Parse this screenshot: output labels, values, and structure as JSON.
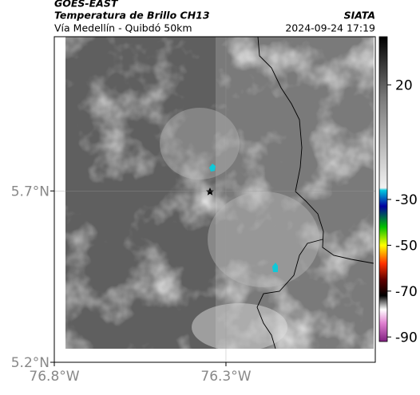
{
  "header": {
    "left_title": "GOES-EAST",
    "left_subtitle": "Temperatura de Brillo CH13",
    "left_caption": "Vía Medellín - Quibdó 50km",
    "right_title": "SIATA",
    "right_caption": "2024-09-24 17:19"
  },
  "map": {
    "lat_range": [
      5.2,
      6.15
    ],
    "lon_range": [
      -76.8,
      -75.865
    ],
    "lat_ticks": [
      {
        "value": 5.7,
        "label": "5.7°N"
      },
      {
        "value": 5.2,
        "label": "5.2°N"
      }
    ],
    "lon_ticks": [
      {
        "value": -76.8,
        "label": "76.8°W"
      },
      {
        "value": -76.3,
        "label": "76.3°W"
      }
    ]
  },
  "colorbar": {
    "range": [
      -92,
      41
    ],
    "ticks": [
      20,
      -30,
      -50,
      -70,
      -90
    ],
    "stops": [
      {
        "value": 41,
        "color": "#000000"
      },
      {
        "value": 15,
        "color": "#777777"
      },
      {
        "value": -25,
        "color": "#f2f2f2"
      },
      {
        "value": -26,
        "color": "#00c8e0"
      },
      {
        "value": -33,
        "color": "#0000a0"
      },
      {
        "value": -42,
        "color": "#00c000"
      },
      {
        "value": -50,
        "color": "#ffff00"
      },
      {
        "value": -58,
        "color": "#ff3000"
      },
      {
        "value": -65,
        "color": "#600000"
      },
      {
        "value": -72,
        "color": "#000000"
      },
      {
        "value": -78,
        "color": "#ffffff"
      },
      {
        "value": -84,
        "color": "#e080d0"
      },
      {
        "value": -92,
        "color": "#802080"
      }
    ]
  }
}
